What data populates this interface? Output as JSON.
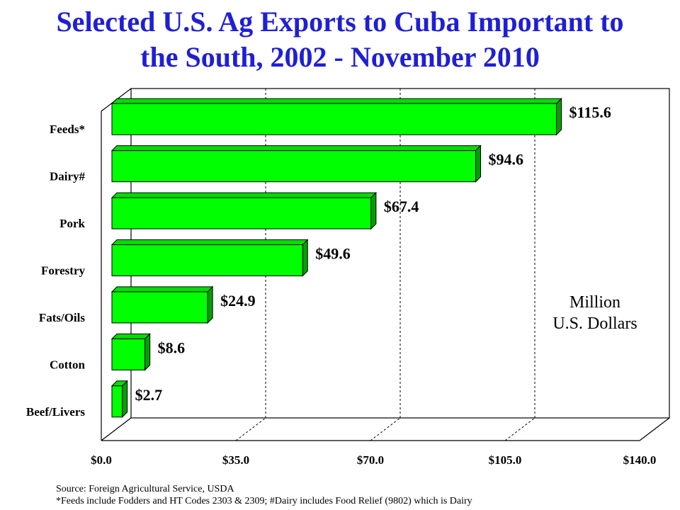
{
  "title_lines": [
    "Selected U.S. Ag Exports to Cuba Important to",
    "the South, 2002 - November 2010"
  ],
  "chart_data": {
    "type": "bar",
    "orientation": "horizontal",
    "title": "Selected U.S. Ag Exports to Cuba Important to the South, 2002 - November 2010",
    "categories": [
      "Feeds*",
      "Dairy#",
      "Pork",
      "Forestry",
      "Fats/Oils",
      "Cotton",
      "Beef/Livers"
    ],
    "values": [
      115.6,
      94.6,
      67.4,
      49.6,
      24.9,
      8.6,
      2.7
    ],
    "value_labels": [
      "$115.6",
      "$94.6",
      "$67.4",
      "$49.6",
      "$24.9",
      "$8.6",
      "$2.7"
    ],
    "unit_label": [
      "Million",
      "U.S. Dollars"
    ],
    "xlim": [
      0,
      140
    ],
    "xticks": [
      0,
      35,
      70,
      105,
      140
    ],
    "xtick_labels": [
      "$0.0",
      "$35.0",
      "$70.0",
      "$105.0",
      "$140.0"
    ],
    "grid": "vertical dashed",
    "style": "3d",
    "bar_color": "#00ff00",
    "bar_edge_color": "#000000"
  },
  "footer": {
    "source": "Source:  Foreign Agricultural Service, USDA",
    "note": "*Feeds include Fodders and HT Codes 2303 & 2309; #Dairy includes Food Relief (9802) which is Dairy"
  }
}
